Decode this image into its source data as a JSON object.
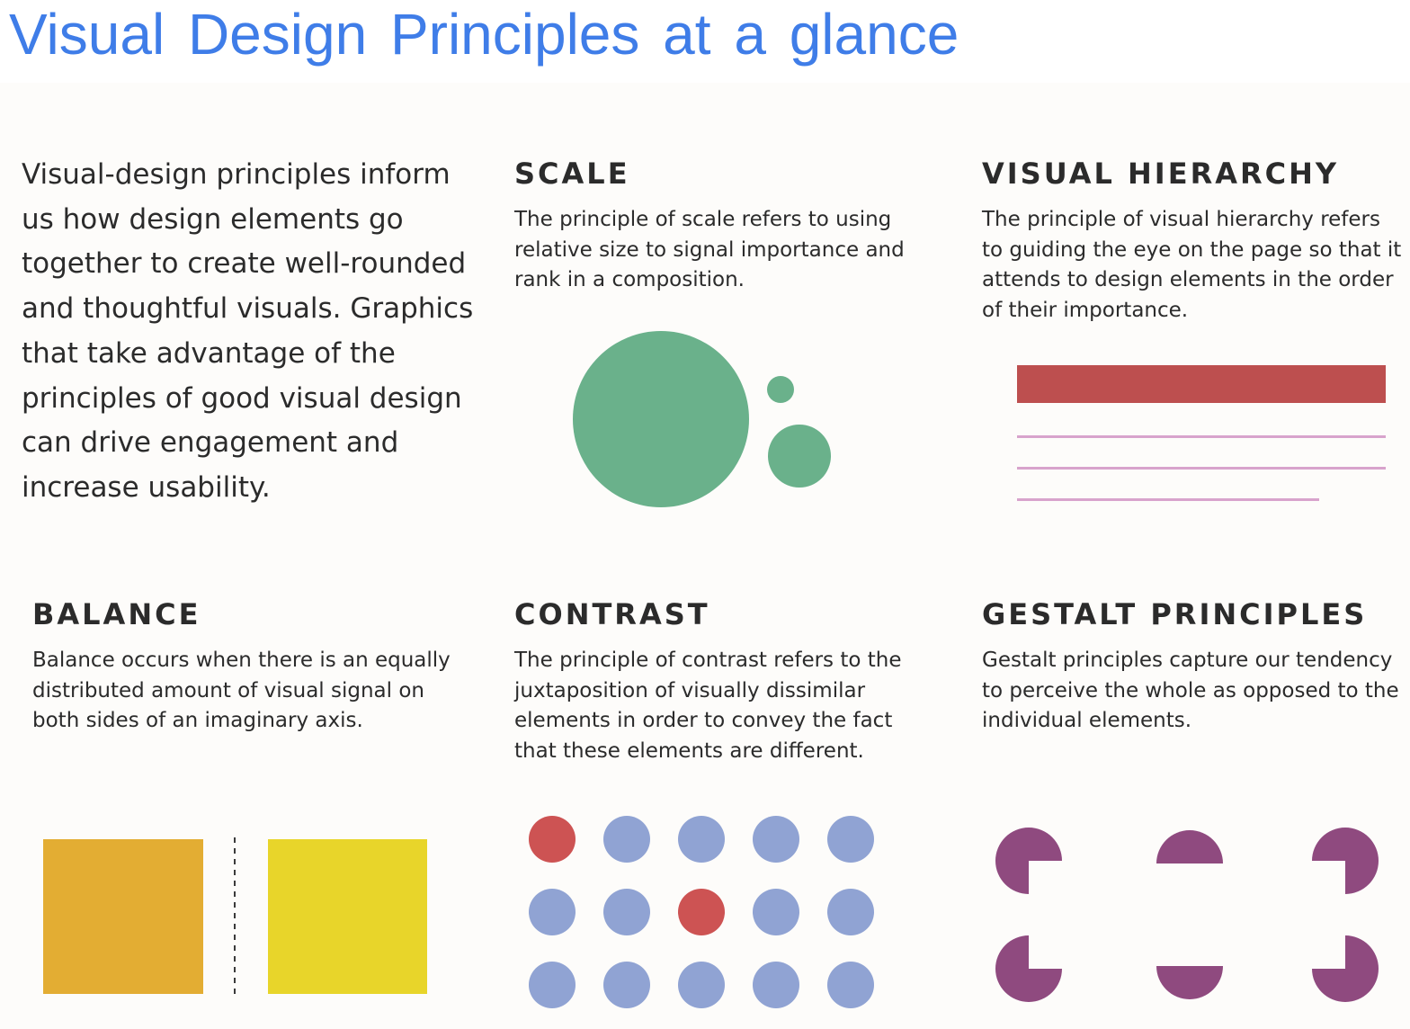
{
  "title": "Visual Design Principles at a glance",
  "intro": "Visual-design principles inform us how design elements go together to create well-rounded and thoughtful visuals. Graphics that take advantage of the principles of good visual design can drive engagement and increase usability.",
  "principles": [
    {
      "heading": "SCALE",
      "description": "The principle of scale refers to using relative size to signal importance and rank in a composition."
    },
    {
      "heading": "VISUAL HIERARCHY",
      "description": "The principle of visual hierarchy refers to guiding the eye on the page so that it attends to design elements in the order of their importance."
    },
    {
      "heading": "BALANCE",
      "description": "Balance occurs when there is an equally distributed amount of visual signal on both sides of an imaginary axis."
    },
    {
      "heading": "CONTRAST",
      "description": "The principle of contrast refers to the juxtaposition of visually dissimilar elements in order to convey the fact that these elements are different."
    },
    {
      "heading": "GESTALT PRINCIPLES",
      "description": "Gestalt principles capture our tendency to perceive the whole as opposed to the individual elements."
    }
  ],
  "colors": {
    "title": "#3f7de8",
    "scale_green": "#6ab18b",
    "hierarchy_red": "#bd4f4f",
    "hierarchy_pink": "#d8a3cc",
    "balance_orange": "#e3ad33",
    "balance_yellow": "#e8d52a",
    "contrast_blue": "#90a3d3",
    "contrast_red": "#cd5353",
    "gestalt_purple": "#8f4a7f"
  },
  "contrast_grid": {
    "rows": 3,
    "cols": 5,
    "highlighted": [
      [
        0,
        0
      ],
      [
        1,
        2
      ]
    ]
  }
}
